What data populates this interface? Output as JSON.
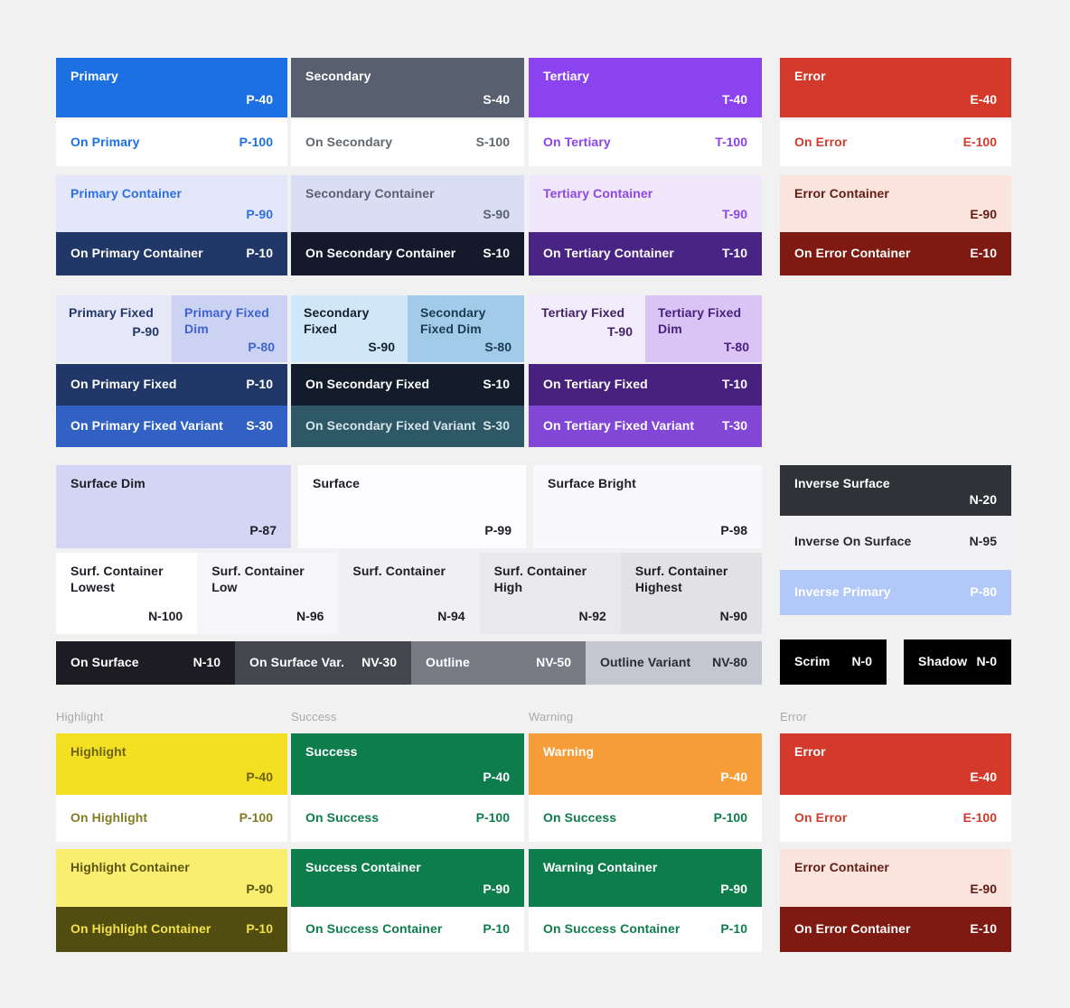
{
  "background": "#f2f1f1",
  "top": {
    "primary": {
      "main": {
        "label": "Primary",
        "value": "P-40",
        "bg": "#1d70e1",
        "fg": "#ffffff"
      },
      "on_main": {
        "label": "On Primary",
        "value": "P-100",
        "bg": "#ffffff",
        "fg": "#1d70e1"
      },
      "container": {
        "label": "Primary Container",
        "value": "P-90",
        "bg": "#e4e7f9",
        "fg": "#2e6fe3"
      },
      "on_container": {
        "label": "On Primary Container",
        "value": "P-10",
        "bg": "#203767",
        "fg": "#ffffff"
      }
    },
    "secondary": {
      "main": {
        "label": "Secondary",
        "value": "S-40",
        "bg": "#586070",
        "fg": "#ffffff"
      },
      "on_main": {
        "label": "On Secondary",
        "value": "S-100",
        "bg": "#ffffff",
        "fg": "#62676f"
      },
      "container": {
        "label": "Secondary Container",
        "value": "S-90",
        "bg": "#dadef4",
        "fg": "#596170"
      },
      "on_container": {
        "label": "On Secondary Container",
        "value": "S-10",
        "bg": "#141a2c",
        "fg": "#ffffff"
      }
    },
    "tertiary": {
      "main": {
        "label": "Tertiary",
        "value": "T-40",
        "bg": "#8a43ee",
        "fg": "#ffffff"
      },
      "on_main": {
        "label": "On Tertiary",
        "value": "T-100",
        "bg": "#ffffff",
        "fg": "#8a43ee"
      },
      "container": {
        "label": "Tertiary Container",
        "value": "T-90",
        "bg": "#f0e7fb",
        "fg": "#8d48e3"
      },
      "on_container": {
        "label": "On Tertiary Container",
        "value": "T-10",
        "bg": "#4a2484",
        "fg": "#ffffff"
      }
    },
    "error": {
      "main": {
        "label": "Error",
        "value": "E-40",
        "bg": "#d43a2b",
        "fg": "#ffffff"
      },
      "on_main": {
        "label": "On Error",
        "value": "E-100",
        "bg": "#ffffff",
        "fg": "#d43a2b"
      },
      "container": {
        "label": "Error Container",
        "value": "E-90",
        "bg": "#fbe3de",
        "fg": "#611c13"
      },
      "on_container": {
        "label": "On Error Container",
        "value": "E-10",
        "bg": "#7e1a12",
        "fg": "#ffffff"
      }
    }
  },
  "fixed": {
    "primary": {
      "fixed": {
        "label": "Primary Fixed",
        "value": "P-90",
        "bg": "#e6e8f8",
        "fg": "#203767"
      },
      "fixed_dim": {
        "label": "Primary Fixed Dim",
        "value": "P-80",
        "bg": "#ccd2f1",
        "fg": "#3e63d1"
      },
      "on_fixed": {
        "label": "On Primary Fixed",
        "value": "P-10",
        "bg": "#203767",
        "fg": "#ffffff"
      },
      "on_fixed_variant": {
        "label": "On Primary Fixed Variant",
        "value": "S-30",
        "bg": "#3162c3",
        "fg": "#ffffff"
      }
    },
    "secondary": {
      "fixed": {
        "label": "Secondary Fixed",
        "value": "S-90",
        "bg": "#cfe7f8",
        "fg": "#15202e"
      },
      "fixed_dim": {
        "label": "Secondary Fixed Dim",
        "value": "S-80",
        "bg": "#a2cbe9",
        "fg": "#1c3a52"
      },
      "on_fixed": {
        "label": "On Secondary Fixed",
        "value": "S-10",
        "bg": "#121c2b",
        "fg": "#ffffff"
      },
      "on_fixed_variant": {
        "label": "On Secondary Fixed Variant",
        "value": "S-30",
        "bg": "#2e5866",
        "fg": "#d6e5ea"
      }
    },
    "tertiary": {
      "fixed": {
        "label": "Tertiary Fixed",
        "value": "T-90",
        "bg": "#f3ecfc",
        "fg": "#432364"
      },
      "fixed_dim": {
        "label": "Tertiary Fixed Dim",
        "value": "T-80",
        "bg": "#dac4f5",
        "fg": "#47217d"
      },
      "on_fixed": {
        "label": "On Tertiary Fixed",
        "value": "T-10",
        "bg": "#47217d",
        "fg": "#ffffff"
      },
      "on_fixed_variant": {
        "label": "On Tertiary Fixed Variant",
        "value": "T-30",
        "bg": "#8347d8",
        "fg": "#ffffff"
      }
    }
  },
  "surface": {
    "dim": {
      "label": "Surface Dim",
      "value": "P-87",
      "bg": "#d4d5f5",
      "fg": "#1d1d24"
    },
    "base": {
      "label": "Surface",
      "value": "P-99",
      "bg": "#fdfcff",
      "fg": "#1d1d24"
    },
    "bright": {
      "label": "Surface Bright",
      "value": "P-98",
      "bg": "#f9f8fd",
      "fg": "#1d1d24"
    },
    "containers": {
      "lowest": {
        "label": "Surf. Container Lowest",
        "value": "N-100",
        "bg": "#ffffff",
        "fg": "#1d1d24"
      },
      "low": {
        "label": "Surf. Container Low",
        "value": "N-96",
        "bg": "#f6f5fa",
        "fg": "#1d1d24"
      },
      "default": {
        "label": "Surf. Container",
        "value": "N-94",
        "bg": "#f0eff4",
        "fg": "#1d1d24"
      },
      "high": {
        "label": "Surf. Container High",
        "value": "N-92",
        "bg": "#e9e8ed",
        "fg": "#1d1d24"
      },
      "highest": {
        "label": "Surf. Container Highest",
        "value": "N-90",
        "bg": "#e2e1e6",
        "fg": "#1d1d24"
      }
    },
    "on_surface": {
      "label": "On Surface",
      "value": "N-10",
      "bg": "#1c1c22",
      "fg": "#ffffff"
    },
    "on_surface_var": {
      "label": "On Surface Var.",
      "value": "NV-30",
      "bg": "#45474f",
      "fg": "#ffffff"
    },
    "outline": {
      "label": "Outline",
      "value": "NV-50",
      "bg": "#787a84",
      "fg": "#ffffff"
    },
    "outline_variant": {
      "label": "Outline Variant",
      "value": "NV-80",
      "bg": "#c4c6d0",
      "fg": "#2a2c33"
    }
  },
  "inverse": {
    "surface": {
      "label": "Inverse Surface",
      "value": "N-20",
      "bg": "#2f3236",
      "fg": "#ffffff"
    },
    "on_surface": {
      "label": "Inverse On Surface",
      "value": "N-95",
      "bg": "#f2f1f6",
      "fg": "#26282e"
    },
    "primary": {
      "label": "Inverse Primary",
      "value": "P-80",
      "bg": "#b2c8f9",
      "fg": "#ffffff"
    },
    "scrim": {
      "label": "Scrim",
      "value": "N-0",
      "bg": "#000000",
      "fg": "#ffffff"
    },
    "shadow": {
      "label": "Shadow",
      "value": "N-0",
      "bg": "#020202",
      "fg": "#ffffff"
    }
  },
  "bottom": {
    "highlight": {
      "header": "Highlight",
      "main": {
        "label": "Highlight",
        "value": "P-40",
        "bg": "#f4e023",
        "fg": "#6c6410"
      },
      "on_main": {
        "label": "On Highlight",
        "value": "P-100",
        "bg": "#ffffff",
        "fg": "#837c20"
      },
      "container": {
        "label": "Highlight Container",
        "value": "P-90",
        "bg": "#f9ee70",
        "fg": "#5b5410"
      },
      "on_container": {
        "label": "On Highlight Container",
        "value": "P-10",
        "bg": "#514c10",
        "fg": "#f2e248"
      }
    },
    "success": {
      "header": "Success",
      "main": {
        "label": "Success",
        "value": "P-40",
        "bg": "#0e7d4c",
        "fg": "#ffffff"
      },
      "on_main": {
        "label": "On Success",
        "value": "P-100",
        "bg": "#ffffff",
        "fg": "#0e7d4c"
      },
      "container": {
        "label": "Success Container",
        "value": "P-90",
        "bg": "#0e7d4c",
        "fg": "#ffffff"
      },
      "on_container": {
        "label": "On Success Container",
        "value": "P-10",
        "bg": "#ffffff",
        "fg": "#0e7d4c"
      }
    },
    "warning": {
      "header": "Warning",
      "main": {
        "label": "Warning",
        "value": "P-40",
        "bg": "#f69c38",
        "fg": "#ffffff"
      },
      "on_main": {
        "label": "On Success",
        "value": "P-100",
        "bg": "#ffffff",
        "fg": "#0e7d4c"
      },
      "container": {
        "label": "Warning Container",
        "value": "P-90",
        "bg": "#0e7d4c",
        "fg": "#ffffff"
      },
      "on_container": {
        "label": "On Success Container",
        "value": "P-10",
        "bg": "#ffffff",
        "fg": "#0e7d4c"
      }
    },
    "error": {
      "header": "Error",
      "main": {
        "label": "Error",
        "value": "E-40",
        "bg": "#d43a2b",
        "fg": "#ffffff"
      },
      "on_main": {
        "label": "On Error",
        "value": "E-100",
        "bg": "#ffffff",
        "fg": "#d43a2b"
      },
      "container": {
        "label": "Error Container",
        "value": "E-90",
        "bg": "#fbe3de",
        "fg": "#611c13"
      },
      "on_container": {
        "label": "On Error Container",
        "value": "E-10",
        "bg": "#7e1a12",
        "fg": "#ffffff"
      }
    }
  }
}
